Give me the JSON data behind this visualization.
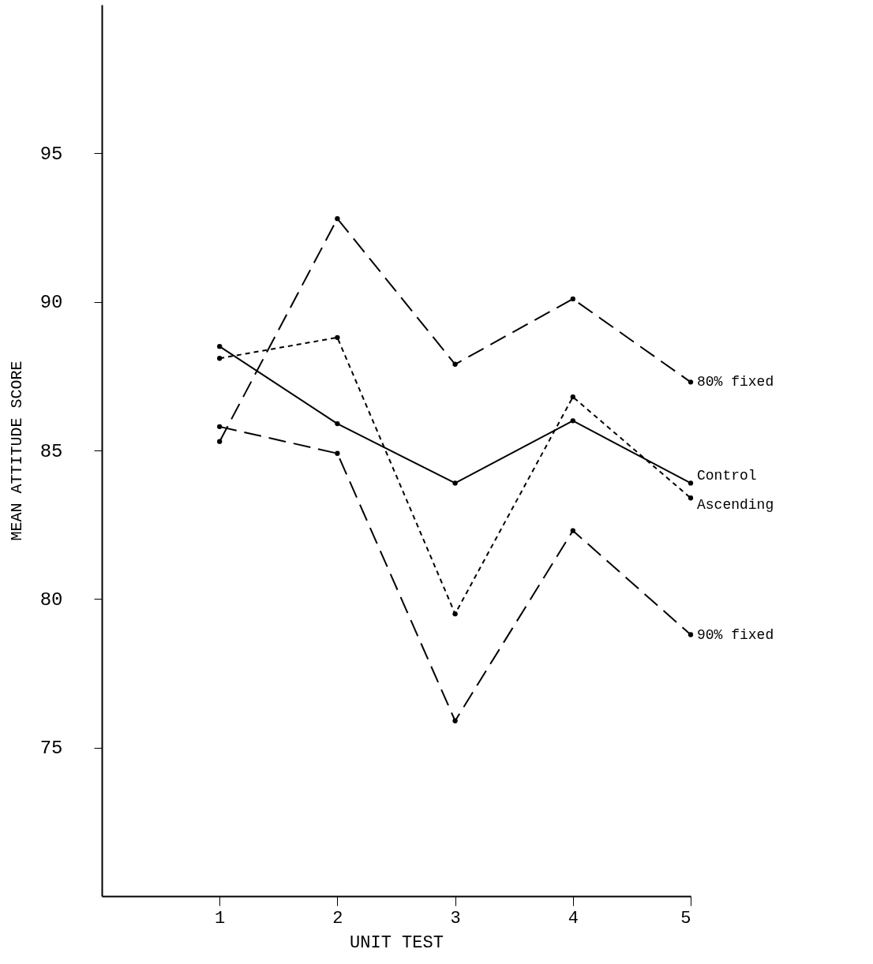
{
  "chart_data": {
    "type": "line",
    "xlabel": "UNIT TEST",
    "ylabel": "MEAN ATTITUDE SCORE",
    "x": [
      1,
      2,
      3,
      4,
      5
    ],
    "series": [
      {
        "name": "80% fixed",
        "color": "#000000",
        "line_style": "dashed",
        "values": [
          85.3,
          92.8,
          87.9,
          90.1,
          87.3
        ]
      },
      {
        "name": "Ascending",
        "color": "#000000",
        "line_style": "dotted",
        "values": [
          88.1,
          88.8,
          79.5,
          86.8,
          83.4
        ]
      },
      {
        "name": "Control",
        "color": "#000000",
        "line_style": "solid",
        "values": [
          88.5,
          85.9,
          83.9,
          86.0,
          83.9
        ]
      },
      {
        "name": "90% fixed",
        "color": "#000000",
        "line_style": "dashed",
        "values": [
          85.8,
          84.9,
          75.9,
          82.3,
          78.8
        ]
      }
    ],
    "xlim": [
      0,
      5
    ],
    "ylim": [
      70,
      100
    ],
    "xticks": [
      1,
      2,
      3,
      4,
      5
    ],
    "yticks": [
      75,
      80,
      85,
      90,
      95
    ],
    "grid": false,
    "legend": false,
    "marker": "circle"
  }
}
